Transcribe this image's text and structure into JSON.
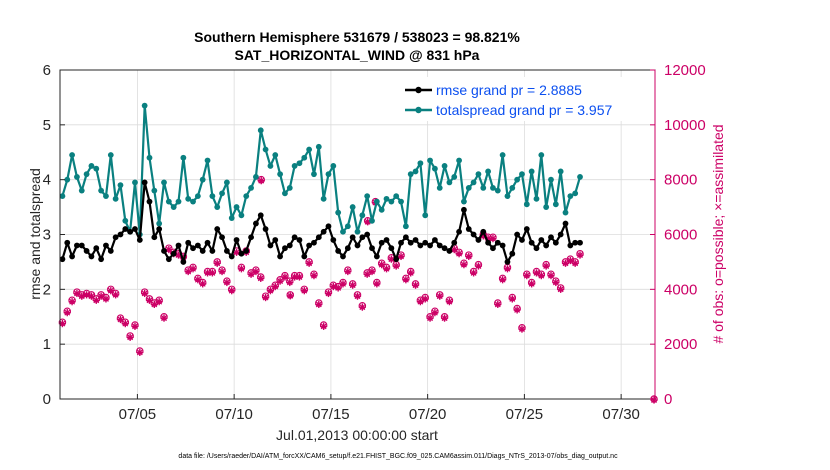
{
  "chart_data": {
    "type": "line",
    "title_line1": "Southern Hemisphere 531679 / 538023 = 98.821%",
    "title_line2": "SAT_HORIZONTAL_WIND @ 831 hPa",
    "xlabel": "Jul.01,2013 00:00:00 start",
    "ylabel_left": "rmse and totalspread",
    "ylabel_right": "# of obs: o=possible; ×=assimilated",
    "footnote": "data file: /Users/raeder/DAI/ATM_forcXX/CAM6_setup/f.e21.FHIST_BGC.f09_025.CAM6assim.011/Diags_NTrS_2013-07/obs_diag_output.nc",
    "xlim": [
      1,
      31.75
    ],
    "ylim_left": [
      0,
      6
    ],
    "ylim_right": [
      0,
      12000
    ],
    "x_ticks": [
      5,
      10,
      15,
      20,
      25,
      30
    ],
    "x_tick_labels": [
      "07/05",
      "07/10",
      "07/15",
      "07/20",
      "07/25",
      "07/30"
    ],
    "y_ticks_left": [
      "0",
      "1",
      "2",
      "3",
      "4",
      "5",
      "6"
    ],
    "y_ticks_right": [
      "0",
      "2000",
      "4000",
      "6000",
      "8000",
      "10000",
      "12000"
    ],
    "x_start": 1.125,
    "x_step": 0.25,
    "series": [
      {
        "name": "rmse",
        "legend": "rmse grand pr = 2.8885",
        "color": "#000000",
        "values": [
          2.55,
          2.85,
          2.6,
          2.8,
          2.8,
          2.7,
          2.6,
          2.75,
          2.55,
          2.8,
          2.7,
          2.95,
          3.0,
          3.1,
          3.05,
          3.1,
          2.9,
          3.95,
          3.6,
          2.95,
          3.1,
          2.7,
          2.55,
          2.65,
          2.8,
          2.5,
          2.85,
          2.75,
          2.8,
          2.7,
          2.85,
          2.7,
          3.1,
          2.95,
          2.7,
          2.6,
          2.9,
          2.65,
          2.7,
          2.95,
          3.2,
          3.35,
          3.1,
          2.8,
          2.9,
          2.6,
          2.75,
          2.8,
          2.95,
          2.9,
          2.6,
          2.8,
          2.85,
          2.95,
          3.05,
          3.15,
          2.9,
          2.7,
          2.6,
          2.75,
          2.95,
          2.8,
          2.95,
          3.0,
          2.75,
          2.6,
          2.85,
          2.9,
          2.75,
          2.55,
          2.85,
          2.95,
          2.85,
          2.9,
          2.8,
          2.85,
          2.8,
          2.9,
          2.8,
          2.75,
          2.7,
          2.85,
          3.05,
          3.45,
          3.1,
          3.0,
          2.9,
          3.05,
          2.85,
          2.75,
          2.85,
          2.8,
          2.5,
          2.65,
          3.0,
          2.9,
          3.1,
          2.85,
          2.75,
          2.9,
          2.8,
          2.95,
          2.85,
          3.0,
          3.2,
          2.8,
          2.85,
          2.85
        ]
      },
      {
        "name": "totalspread",
        "legend": "totalspread grand pr = 3.957",
        "color": "#0a8080",
        "values": [
          3.7,
          4.0,
          4.45,
          4.05,
          3.8,
          4.1,
          4.25,
          4.2,
          3.8,
          3.7,
          4.45,
          3.65,
          3.9,
          3.25,
          3.05,
          3.95,
          3.0,
          5.35,
          4.4,
          3.8,
          3.2,
          3.95,
          3.6,
          3.5,
          3.6,
          4.4,
          3.65,
          3.6,
          3.7,
          4.0,
          4.35,
          3.7,
          3.5,
          3.75,
          3.95,
          3.3,
          3.5,
          3.35,
          3.7,
          3.85,
          4.05,
          4.9,
          4.55,
          4.25,
          4.45,
          4.1,
          3.75,
          3.85,
          4.25,
          4.3,
          4.4,
          4.55,
          4.1,
          4.6,
          3.65,
          4.1,
          4.25,
          3.4,
          3.05,
          3.15,
          3.5,
          3.05,
          3.35,
          3.7,
          3.25,
          3.6,
          3.45,
          3.65,
          3.6,
          3.7,
          3.6,
          3.15,
          4.1,
          4.15,
          4.3,
          3.35,
          4.35,
          4.2,
          3.85,
          4.25,
          3.95,
          4.05,
          4.35,
          3.6,
          3.85,
          3.95,
          4.1,
          3.85,
          4.15,
          3.85,
          3.8,
          4.45,
          3.7,
          3.85,
          4.0,
          4.1,
          3.55,
          4.15,
          3.65,
          4.45,
          3.5,
          4.0,
          3.55,
          4.15,
          3.4,
          3.7,
          3.75,
          4.05
        ]
      },
      {
        "name": "obs_possible",
        "color": "#cc0066",
        "values": [
          2800,
          3200,
          3600,
          3900,
          3800,
          3850,
          3800,
          3650,
          3800,
          3700,
          4000,
          3850,
          2950,
          2800,
          2300,
          2700,
          1750,
          3900,
          3650,
          3500,
          3600,
          3000,
          5500,
          5350,
          5300,
          5200,
          4700,
          4800,
          4400,
          4250,
          4650,
          4650,
          5000,
          4700,
          4300,
          4000,
          5400,
          4800,
          5400,
          4600,
          4700,
          4450,
          3750,
          4000,
          4150,
          4350,
          4500,
          4300,
          4500,
          4500,
          4000,
          5000,
          4550,
          3500,
          2700,
          3900,
          4150,
          4100,
          4250,
          4700,
          4200,
          3800,
          3400,
          4600,
          4700,
          4250,
          4950,
          4800,
          5150,
          4900,
          5250,
          4400,
          4650,
          4200,
          3600,
          3700,
          3000,
          3200,
          3800,
          3000,
          3600,
          5500,
          5350,
          4950,
          5250,
          4650,
          4900,
          6000,
          5900,
          5900,
          3500,
          4400,
          4800,
          3700,
          3300,
          2600,
          4550,
          4250,
          4650,
          4550,
          4900,
          4550,
          4300,
          4050,
          5000,
          5100,
          5000,
          5300
        ]
      },
      {
        "name": "obs_assimilated",
        "color": "#cc0066",
        "values": [
          2750,
          3150,
          3550,
          3850,
          3750,
          3800,
          3750,
          3600,
          3750,
          3650,
          3950,
          3800,
          2900,
          2750,
          2250,
          2650,
          1700,
          3850,
          3600,
          3450,
          3550,
          2950,
          5450,
          5300,
          5250,
          5150,
          4650,
          4750,
          4350,
          4200,
          4600,
          4600,
          4950,
          4650,
          4250,
          3950,
          5350,
          4750,
          5350,
          4550,
          4650,
          4400,
          3700,
          3950,
          4100,
          4300,
          4450,
          4250,
          4450,
          4450,
          3950,
          4950,
          4500,
          3450,
          2650,
          3850,
          4100,
          4050,
          4200,
          4650,
          4150,
          3750,
          3350,
          4550,
          4650,
          4200,
          4900,
          4750,
          5100,
          4850,
          5200,
          4350,
          4600,
          4150,
          3550,
          3650,
          2950,
          3150,
          3750,
          2950,
          3550,
          5450,
          5300,
          4900,
          5200,
          4600,
          4850,
          5950,
          5850,
          5850,
          3450,
          4350,
          4750,
          3650,
          3250,
          2550,
          4500,
          4200,
          4600,
          4500,
          4850,
          4500,
          4250,
          4000,
          4950,
          5050,
          4950,
          5250
        ]
      }
    ],
    "obs_outliers": [
      {
        "x": 11.4,
        "value": 8000
      },
      {
        "x": 16.9,
        "value": 6500
      },
      {
        "x": 17.3,
        "value": 7200
      },
      {
        "x": 12.9,
        "value": 3800
      },
      {
        "x": 31.7,
        "value": 0
      }
    ]
  }
}
